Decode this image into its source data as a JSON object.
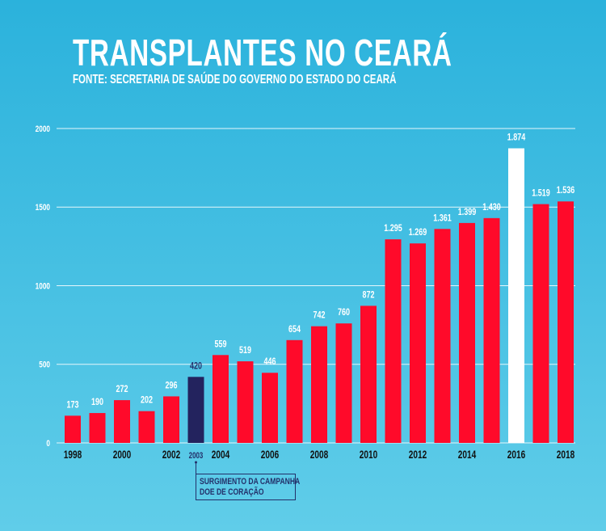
{
  "chart_data": {
    "type": "bar",
    "title": "TRANSPLANTES NO CEARÁ",
    "subtitle": "FONTE: SECRETARIA DE SAÚDE DO GOVERNO DO ESTADO DO CEARÁ",
    "xlabel": "",
    "ylabel": "",
    "ylim": [
      0,
      2000
    ],
    "yticks": [
      0,
      500,
      1000,
      1500,
      2000
    ],
    "grid": true,
    "categories": [
      "1998",
      "1999",
      "2000",
      "2001",
      "2002",
      "2003",
      "2004",
      "2005",
      "2006",
      "2007",
      "2008",
      "2009",
      "2010",
      "2011",
      "2012",
      "2013",
      "2014",
      "2015",
      "2016",
      "2017",
      "2018"
    ],
    "xtick_labels": [
      "1998",
      "",
      "2000",
      "",
      "2002",
      "2003",
      "2004",
      "",
      "2006",
      "",
      "2008",
      "",
      "2010",
      "",
      "2012",
      "",
      "2014",
      "",
      "2016",
      "",
      "2018"
    ],
    "values": [
      173,
      190,
      272,
      202,
      296,
      420,
      559,
      519,
      446,
      654,
      742,
      760,
      872,
      1295,
      1269,
      1361,
      1399,
      1430,
      1874,
      1519,
      1536
    ],
    "value_labels": [
      "173",
      "190",
      "272",
      "202",
      "296",
      "420",
      "559",
      "519",
      "446",
      "654",
      "742",
      "760",
      "872",
      "1.295",
      "1.269",
      "1.361",
      "1.399",
      "1.430",
      "1.874",
      "1.519",
      "1.536"
    ],
    "highlight": {
      "2003": "#23235e",
      "2016": "#ffffff"
    },
    "bar_color": "#ff0a2a",
    "annotation": {
      "target": "2003",
      "lines": [
        "SURGIMENTO DA CAMPANHA",
        "DOE DE CORAÇÃO"
      ]
    }
  }
}
